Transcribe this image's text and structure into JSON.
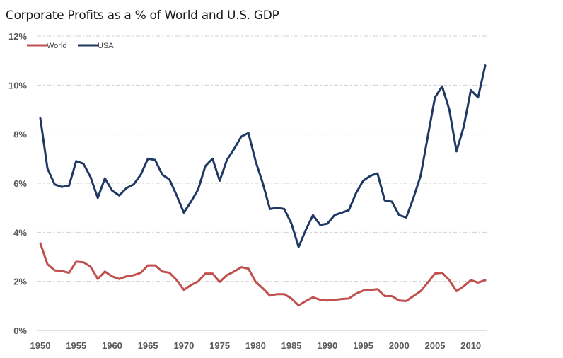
{
  "chart_data": {
    "type": "line",
    "title": "Corporate Profits as a % of World and U.S. GDP",
    "xlabel": "",
    "ylabel": "",
    "ylim": [
      0,
      12
    ],
    "xlim": [
      1950,
      2012
    ],
    "yticks": [
      0,
      2,
      4,
      6,
      8,
      10,
      12
    ],
    "ytick_labels": [
      "0%",
      "2%",
      "4%",
      "6%",
      "8%",
      "10%",
      "12%"
    ],
    "xticks": [
      1950,
      1955,
      1960,
      1965,
      1970,
      1975,
      1980,
      1985,
      1990,
      1995,
      2000,
      2005,
      2010
    ],
    "xtick_labels": [
      "1950",
      "1955",
      "1960",
      "1965",
      "1970",
      "1975",
      "1980",
      "1985",
      "1990",
      "1995",
      "2000",
      "2005",
      "2010"
    ],
    "grid": true,
    "legend_position": "top-left",
    "x": [
      1950,
      1951,
      1952,
      1953,
      1954,
      1955,
      1956,
      1957,
      1958,
      1959,
      1960,
      1961,
      1962,
      1963,
      1964,
      1965,
      1966,
      1967,
      1968,
      1969,
      1970,
      1971,
      1972,
      1973,
      1974,
      1975,
      1976,
      1977,
      1978,
      1979,
      1980,
      1981,
      1982,
      1983,
      1984,
      1985,
      1986,
      1987,
      1988,
      1989,
      1990,
      1991,
      1992,
      1993,
      1994,
      1995,
      1996,
      1997,
      1998,
      1999,
      2000,
      2001,
      2002,
      2003,
      2004,
      2005,
      2006,
      2007,
      2008,
      2009,
      2010,
      2011,
      2012
    ],
    "series": [
      {
        "name": "World",
        "color": "#c0504d",
        "values": [
          3.55,
          2.7,
          2.45,
          2.42,
          2.35,
          2.8,
          2.78,
          2.6,
          2.1,
          2.4,
          2.2,
          2.1,
          2.2,
          2.25,
          2.35,
          2.65,
          2.65,
          2.4,
          2.35,
          2.05,
          1.65,
          1.85,
          2.0,
          2.32,
          2.32,
          1.98,
          2.25,
          2.4,
          2.58,
          2.52,
          1.98,
          1.72,
          1.42,
          1.48,
          1.48,
          1.3,
          1.02,
          1.2,
          1.35,
          1.25,
          1.22,
          1.25,
          1.28,
          1.3,
          1.5,
          1.62,
          1.65,
          1.68,
          1.4,
          1.4,
          1.22,
          1.2,
          1.4,
          1.6,
          1.95,
          2.32,
          2.35,
          2.05,
          1.6,
          1.8,
          2.05,
          1.95,
          2.05
        ]
      },
      {
        "name": "USA",
        "color": "#1f3864",
        "values": [
          8.65,
          6.6,
          5.95,
          5.85,
          5.9,
          6.9,
          6.8,
          6.25,
          5.4,
          6.2,
          5.7,
          5.5,
          5.8,
          5.95,
          6.35,
          7.0,
          6.95,
          6.35,
          6.15,
          5.5,
          4.8,
          5.25,
          5.75,
          6.7,
          7.0,
          6.1,
          6.95,
          7.4,
          7.9,
          8.05,
          6.9,
          6.0,
          4.95,
          5.0,
          4.95,
          4.35,
          3.4,
          4.1,
          4.7,
          4.3,
          4.35,
          4.7,
          4.8,
          4.9,
          5.6,
          6.1,
          6.3,
          6.4,
          5.3,
          5.25,
          4.7,
          4.6,
          5.4,
          6.3,
          7.9,
          9.5,
          9.95,
          9.0,
          7.3,
          8.3,
          9.8,
          9.5,
          10.8
        ]
      }
    ]
  }
}
